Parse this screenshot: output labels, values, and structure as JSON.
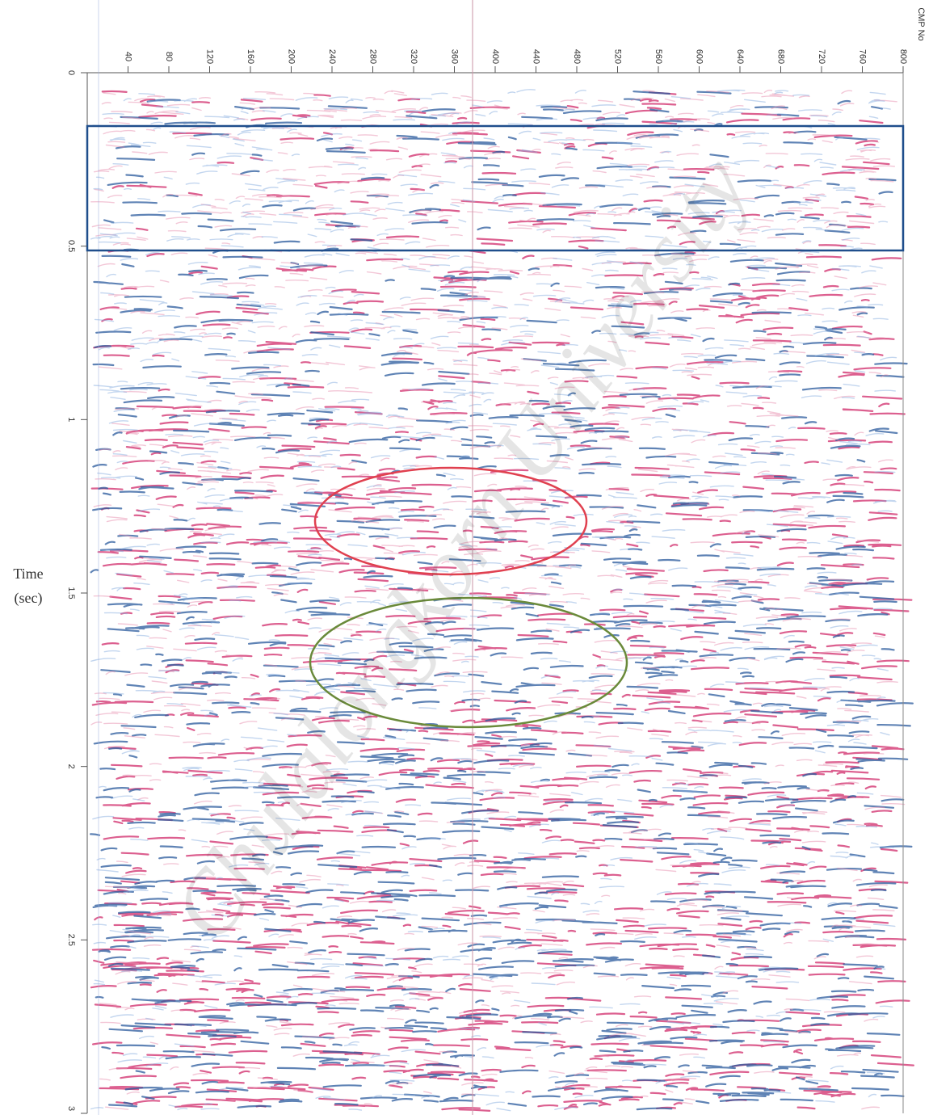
{
  "x_axis": {
    "label": "CMP No",
    "lim": [
      0,
      800
    ],
    "ticks": [
      40,
      80,
      120,
      160,
      200,
      240,
      280,
      320,
      360,
      400,
      440,
      480,
      520,
      560,
      600,
      640,
      680,
      720,
      760,
      800
    ]
  },
  "y_axis": {
    "label": [
      "Time",
      "(sec)"
    ],
    "lim": [
      0,
      3
    ],
    "ticks": [
      0,
      0.5,
      1,
      1.5,
      2,
      2.5,
      3
    ]
  },
  "watermark": "Chulalongkorn University"
}
